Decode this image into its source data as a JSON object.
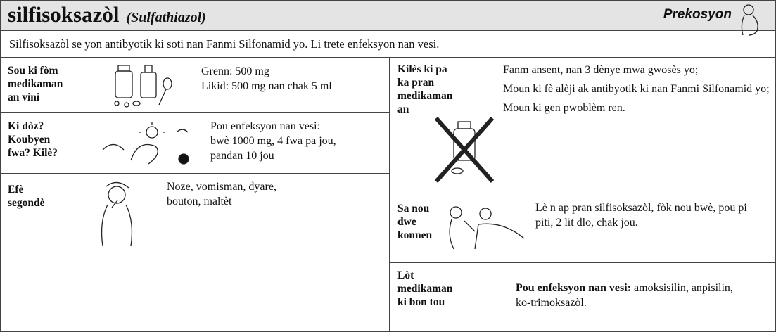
{
  "header": {
    "title": "silfisoksazòl",
    "subtitle": "(Sulfathiazol)",
    "badge": "Prekosyon"
  },
  "intro": "Silfisoksazòl se yon antibyotik ki soti nan Fanmi Silfonamid yo.  Li trete enfeksyon nan vesi.",
  "left": [
    {
      "label": [
        "Sou ki fòm",
        "medikaman",
        "an vini"
      ],
      "text": [
        "Grenn: 500 mg",
        "Likid: 500 mg nan chak 5 ml"
      ]
    },
    {
      "label": [
        "Ki dòz?",
        "Koubyen",
        "fwa?  Kilè?"
      ],
      "text": [
        "Pou enfeksyon nan vesi:",
        "bwè 1000 mg, 4 fwa pa jou,",
        "pandan 10 jou"
      ]
    },
    {
      "label": [
        "Efè",
        "segondè"
      ],
      "text": [
        "Noze, vomisman, dyare,",
        "bouton, maltèt"
      ]
    }
  ],
  "right": [
    {
      "label": [
        "Kilès ki pa",
        "ka pran",
        "medikaman",
        "an"
      ],
      "items": [
        "Fanm ansent, nan 3 dènye mwa gwosès yo;",
        "Moun ki fè alèji ak antibyotik ki nan Fanmi Silfonamid yo;",
        "Moun ki gen pwoblèm ren."
      ]
    },
    {
      "label": [
        "Sa nou",
        "dwe",
        "konnen"
      ],
      "text": "Lè n ap pran silfisoksazòl, fòk nou bwè, pou pi piti, 2 lit dlo, chak jou."
    },
    {
      "label": [
        "Lòt",
        "medikaman",
        "ki bon tou"
      ],
      "bold": "Pou enfeksyon nan vesi:",
      "text": "amoksisilin, anpisilin, ko-trimoksazòl."
    }
  ]
}
